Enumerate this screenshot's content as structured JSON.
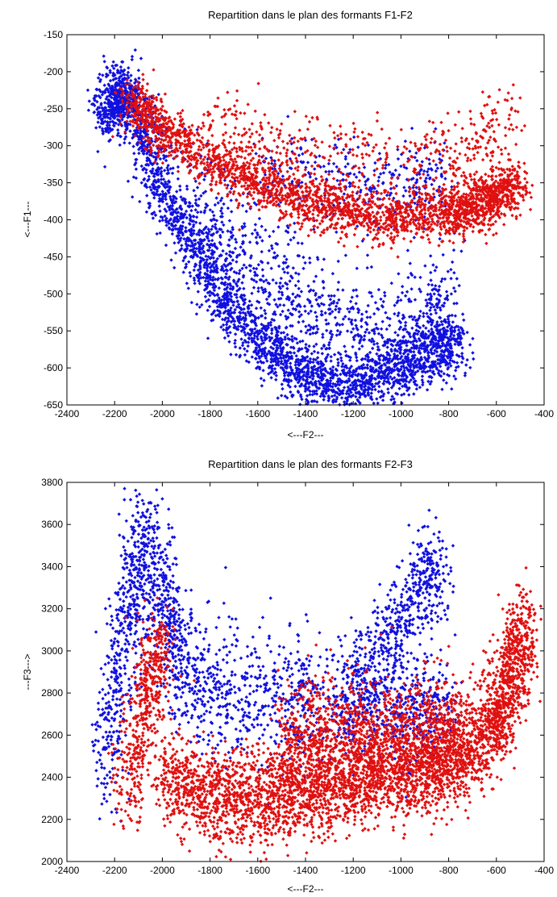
{
  "charts": [
    {
      "title": "Repartition dans le plan des formants F1-F2",
      "xlabel": "<---F2---",
      "ylabel": "<---F1---"
    },
    {
      "title": "Repartition dans le plan des formants F2-F3",
      "xlabel": "<---F2---",
      "ylabel": "---F3--->"
    }
  ],
  "chart_data": [
    {
      "type": "scatter",
      "title": "Repartition dans le plan des formants F1-F2",
      "xlabel": "<---F2---",
      "ylabel": "<---F1---",
      "xlim": [
        -2400,
        -400
      ],
      "ylim": [
        -650,
        -150
      ],
      "xticks": [
        -2400,
        -2200,
        -2000,
        -1800,
        -1600,
        -1400,
        -1200,
        -1000,
        -800,
        -600,
        -400
      ],
      "yticks": [
        -650,
        -600,
        -550,
        -500,
        -450,
        -400,
        -350,
        -300,
        -250,
        -200,
        -150
      ],
      "grid": false,
      "series_colors": [
        "#1010e0",
        "#e01010"
      ],
      "series": [
        {
          "color": "#1010e0",
          "clusters": [
            {
              "n": 2600,
              "path": [
                [
                  -2230,
                  -260
                ],
                [
                  -2150,
                  -230
                ],
                [
                  -2050,
                  -330
                ],
                [
                  -1950,
                  -390
                ],
                [
                  -1850,
                  -450
                ],
                [
                  -1750,
                  -500
                ],
                [
                  -1650,
                  -545
                ],
                [
                  -1550,
                  -575
                ],
                [
                  -1450,
                  -600
                ],
                [
                  -1350,
                  -615
                ],
                [
                  -1250,
                  -625
                ],
                [
                  -1150,
                  -622
                ],
                [
                  -1050,
                  -608
                ],
                [
                  -950,
                  -590
                ],
                [
                  -850,
                  -570
                ],
                [
                  -750,
                  -565
                ]
              ],
              "spread_y": 20
            },
            {
              "n": 900,
              "path": [
                [
                  -1900,
                  -360
                ],
                [
                  -1700,
                  -430
                ],
                [
                  -1500,
                  -495
                ],
                [
                  -1300,
                  -540
                ],
                [
                  -1100,
                  -560
                ],
                [
                  -900,
                  -535
                ],
                [
                  -780,
                  -510
                ]
              ],
              "spread_y": 40
            },
            {
              "n": 500,
              "path": [
                [
                  -2250,
                  -270
                ],
                [
                  -2180,
                  -210
                ],
                [
                  -2120,
                  -260
                ],
                [
                  -2000,
                  -300
                ]
              ],
              "spread_y": 18
            },
            {
              "n": 350,
              "path": [
                [
                  -1600,
                  -330
                ],
                [
                  -1300,
                  -350
                ],
                [
                  -1000,
                  -360
                ],
                [
                  -800,
                  -340
                ]
              ],
              "spread_y": 30
            }
          ]
        },
        {
          "color": "#e01010",
          "clusters": [
            {
              "n": 2600,
              "path": [
                [
                  -2130,
                  -240
                ],
                [
                  -2000,
                  -280
                ],
                [
                  -1800,
                  -320
                ],
                [
                  -1600,
                  -350
                ],
                [
                  -1400,
                  -375
                ],
                [
                  -1200,
                  -392
                ],
                [
                  -1000,
                  -398
                ],
                [
                  -800,
                  -392
                ],
                [
                  -700,
                  -380
                ],
                [
                  -600,
                  -370
                ],
                [
                  -520,
                  -350
                ]
              ],
              "spread_y": 17
            },
            {
              "n": 450,
              "path": [
                [
                  -1800,
                  -260
                ],
                [
                  -1500,
                  -300
                ],
                [
                  -1200,
                  -320
                ],
                [
                  -900,
                  -320
                ],
                [
                  -700,
                  -300
                ],
                [
                  -520,
                  -270
                ]
              ],
              "spread_y": 28
            }
          ]
        }
      ]
    },
    {
      "type": "scatter",
      "title": "Repartition dans le plan des formants F2-F3",
      "xlabel": "<---F2---",
      "ylabel": "---F3--->",
      "xlim": [
        -2400,
        -400
      ],
      "ylim": [
        2000,
        3800
      ],
      "xticks": [
        -2400,
        -2200,
        -2000,
        -1800,
        -1600,
        -1400,
        -1200,
        -1000,
        -800,
        -600,
        -400
      ],
      "yticks": [
        2000,
        2200,
        2400,
        2600,
        2800,
        3000,
        3200,
        3400,
        3600,
        3800
      ],
      "grid": false,
      "series_colors": [
        "#1010e0",
        "#e01010"
      ],
      "series": [
        {
          "color": "#1010e0",
          "clusters": [
            {
              "n": 1500,
              "path": [
                [
                  -2250,
                  2450
                ],
                [
                  -2180,
                  2900
                ],
                [
                  -2120,
                  3300
                ],
                [
                  -2080,
                  3550
                ],
                [
                  -2000,
                  3300
                ],
                [
                  -1950,
                  3000
                ],
                [
                  -1850,
                  2850
                ],
                [
                  -1700,
                  2800
                ],
                [
                  -1500,
                  2780
                ],
                [
                  -1350,
                  2750
                ]
              ],
              "spread_y": 150
            },
            {
              "n": 600,
              "path": [
                [
                  -1250,
                  2800
                ],
                [
                  -1100,
                  2950
                ],
                [
                  -1000,
                  3150
                ],
                [
                  -900,
                  3300
                ],
                [
                  -850,
                  3400
                ]
              ],
              "spread_y": 120
            },
            {
              "n": 500,
              "path": [
                [
                  -1300,
                  2700
                ],
                [
                  -1000,
                  2700
                ],
                [
                  -800,
                  2720
                ]
              ],
              "spread_y": 120
            }
          ]
        },
        {
          "color": "#e01010",
          "clusters": [
            {
              "n": 3600,
              "path": [
                [
                  -2000,
                  2380
                ],
                [
                  -1800,
                  2320
                ],
                [
                  -1600,
                  2300
                ],
                [
                  -1400,
                  2330
                ],
                [
                  -1200,
                  2390
                ],
                [
                  -1000,
                  2430
                ],
                [
                  -800,
                  2480
                ],
                [
                  -650,
                  2580
                ],
                [
                  -550,
                  2800
                ],
                [
                  -480,
                  3150
                ]
              ],
              "spread_y": 110
            },
            {
              "n": 1300,
              "path": [
                [
                  -1500,
                  2560
                ],
                [
                  -1300,
                  2600
                ],
                [
                  -1100,
                  2580
                ],
                [
                  -900,
                  2560
                ],
                [
                  -750,
                  2620
                ]
              ],
              "spread_y": 150
            },
            {
              "n": 500,
              "path": [
                [
                  -2150,
                  2300
                ],
                [
                  -2100,
                  2600
                ],
                [
                  -2050,
                  2900
                ],
                [
                  -2000,
                  3000
                ]
              ],
              "spread_y": 120
            }
          ]
        }
      ]
    }
  ]
}
